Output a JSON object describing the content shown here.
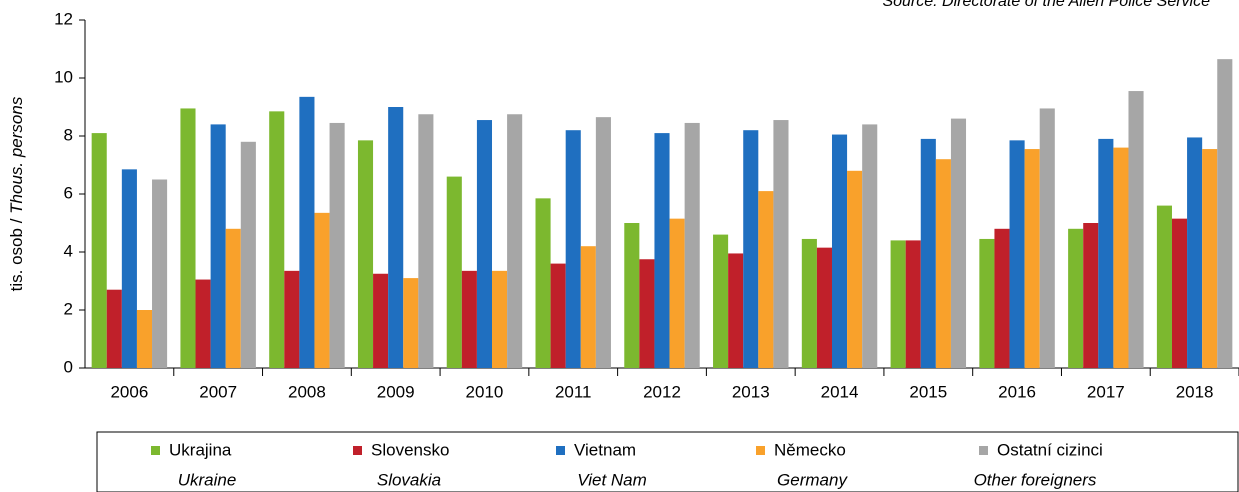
{
  "chart_data": {
    "type": "bar",
    "source": "Source: Directorate of the Alien Police Service",
    "y_label": {
      "czech": "tis. osob /",
      "english": "Thous. persons"
    },
    "categories": [
      "2006",
      "2007",
      "2008",
      "2009",
      "2010",
      "2011",
      "2012",
      "2013",
      "2014",
      "2015",
      "2016",
      "2017",
      "2018"
    ],
    "series": [
      {
        "name": "Ukrajina",
        "name_en": "Ukraine",
        "color": "#7cb82f",
        "values": [
          8.1,
          8.95,
          8.85,
          7.85,
          6.6,
          5.85,
          5.0,
          4.6,
          4.45,
          4.4,
          4.45,
          4.8,
          5.6
        ]
      },
      {
        "name": "Slovensko",
        "name_en": "Slovakia",
        "color": "#c0202a",
        "values": [
          2.7,
          3.05,
          3.35,
          3.25,
          3.35,
          3.6,
          3.75,
          3.95,
          4.15,
          4.4,
          4.8,
          5.0,
          5.15
        ]
      },
      {
        "name": "Vietnam",
        "name_en": "Viet Nam",
        "color": "#1f6fc0",
        "values": [
          6.85,
          8.4,
          9.35,
          9.0,
          8.55,
          8.2,
          8.1,
          8.2,
          8.05,
          7.9,
          7.85,
          7.9,
          7.95
        ]
      },
      {
        "name": "Německo",
        "name_en": "Germany",
        "color": "#f9a12b",
        "values": [
          2.0,
          4.8,
          5.35,
          3.1,
          3.35,
          4.2,
          5.15,
          6.1,
          6.8,
          7.2,
          7.55,
          7.6,
          7.55
        ]
      },
      {
        "name": "Ostatní cizinci",
        "name_en": "Other foreigners",
        "color": "#a6a6a6",
        "values": [
          6.5,
          7.8,
          8.45,
          8.75,
          8.75,
          8.65,
          8.45,
          8.55,
          8.4,
          8.6,
          8.95,
          9.55,
          10.65
        ]
      }
    ],
    "ylim": [
      0,
      12
    ],
    "yticks": [
      0,
      2,
      4,
      6,
      8,
      10,
      12
    ],
    "grid": false
  }
}
